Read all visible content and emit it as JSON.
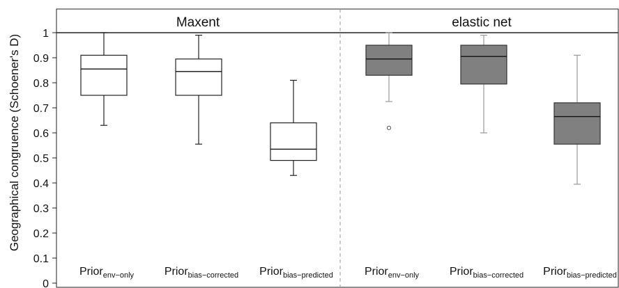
{
  "chart_data": {
    "type": "boxplot",
    "ylabel": "Geographical congruence (Schoener's D)",
    "ylim": [
      0,
      1.1
    ],
    "yticks": [
      "0",
      "0.1",
      "0.2",
      "0.3",
      "0.4",
      "0.5",
      "0.6",
      "0.7",
      "0.8",
      "0.9",
      "1"
    ],
    "grid": false,
    "panels": [
      {
        "title": "Maxent",
        "fill": "#ffffff",
        "groups": [
          {
            "label_main": "Prior",
            "label_sub": "env−only",
            "whisker_low": 0.63,
            "q1": 0.75,
            "median": 0.855,
            "q3": 0.91,
            "whisker_high": 1.0,
            "outliers": []
          },
          {
            "label_main": "Prior",
            "label_sub": "bias−corrected",
            "whisker_low": 0.555,
            "q1": 0.75,
            "median": 0.845,
            "q3": 0.895,
            "whisker_high": 0.99,
            "outliers": []
          },
          {
            "label_main": "Prior",
            "label_sub": "bias−predicted",
            "whisker_low": 0.43,
            "q1": 0.49,
            "median": 0.535,
            "q3": 0.64,
            "whisker_high": 0.81,
            "outliers": []
          }
        ]
      },
      {
        "title": "elastic net",
        "fill": "#808080",
        "groups": [
          {
            "label_main": "Prior",
            "label_sub": "env−only",
            "whisker_low": 0.725,
            "q1": 0.83,
            "median": 0.895,
            "q3": 0.95,
            "whisker_high": 1.0,
            "outliers": [
              0.62
            ]
          },
          {
            "label_main": "Prior",
            "label_sub": "bias−corrected",
            "whisker_low": 0.6,
            "q1": 0.795,
            "median": 0.905,
            "q3": 0.95,
            "whisker_high": 0.99,
            "outliers": []
          },
          {
            "label_main": "Prior",
            "label_sub": "bias−predicted",
            "whisker_low": 0.395,
            "q1": 0.555,
            "median": 0.665,
            "q3": 0.72,
            "whisker_high": 0.91,
            "outliers": []
          }
        ]
      }
    ]
  }
}
